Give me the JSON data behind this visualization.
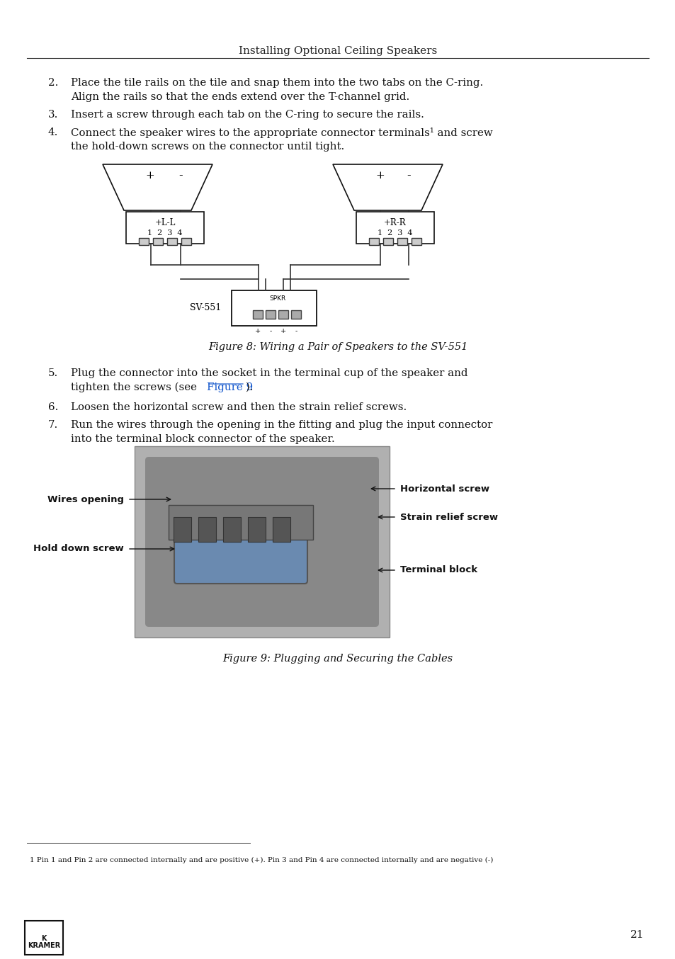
{
  "page_title": "Installing Optional Ceiling Speakers",
  "background_color": "#ffffff",
  "text_color": "#000000",
  "title_fontsize": 11,
  "body_fontsize": 10.5,
  "page_number": "21",
  "items": [
    {
      "num": "2.",
      "text": "Place the tile rails on the tile and snap them into the two tabs on the C-ring.\n    Align the rails so that the ends extend over the T-channel grid."
    },
    {
      "num": "3.",
      "text": "Insert a screw through each tab on the C-ring to secure the rails."
    },
    {
      "num": "4.",
      "text": "Connect the speaker wires to the appropriate connector terminals¹ and screw\n    the hold-down screws on the connector until tight."
    },
    {
      "num": "5.",
      "text": "Plug the connector into the socket in the terminal cup of the speaker and\n    tighten the screws (see Figure 9)."
    },
    {
      "num": "6.",
      "text": "Loosen the horizontal screw and then the strain relief screws."
    },
    {
      "num": "7.",
      "text": "Run the wires through the opening in the fitting and plug the input connector\n    into the terminal block connector of the speaker."
    }
  ],
  "fig8_caption": "Figure 8: Wiring a Pair of Speakers to the SV-551",
  "fig9_caption": "Figure 9: Plugging and Securing the Cables",
  "footnote": "1 Pin 1 and Pin 2 are connected internally and are positive (+). Pin 3 and Pin 4 are connected internally and are negative (-)",
  "fig9_labels": {
    "wires_opening": "Wires opening",
    "hold_down_screw": "Hold down screw",
    "horizontal_screw": "Horizontal screw",
    "strain_relief_screw": "Strain relief screw",
    "terminal_block": "Terminal block"
  }
}
